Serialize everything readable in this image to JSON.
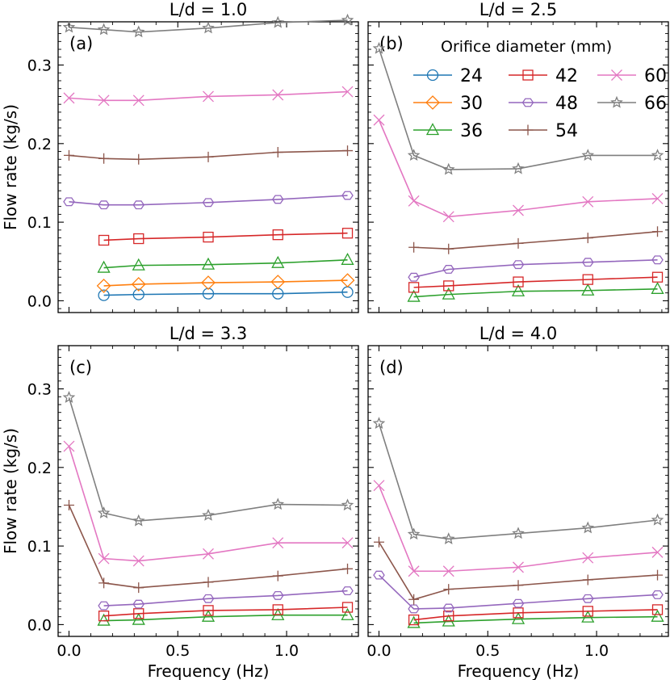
{
  "chart_data": [
    {
      "type": "line",
      "panel_label": "(a)",
      "title": "L/d = 1.0",
      "xlabel": "",
      "ylabel": "Flow rate (kg/s)",
      "xlim": [
        -0.05,
        1.33
      ],
      "ylim": [
        -0.015,
        0.355
      ],
      "series": [
        {
          "name": "24",
          "x": [
            0.16,
            0.32,
            0.64,
            0.96,
            1.28
          ],
          "y": [
            0.007,
            0.008,
            0.009,
            0.009,
            0.011
          ]
        },
        {
          "name": "30",
          "x": [
            0.16,
            0.32,
            0.64,
            0.96,
            1.28
          ],
          "y": [
            0.019,
            0.021,
            0.023,
            0.024,
            0.026
          ]
        },
        {
          "name": "36",
          "x": [
            0.16,
            0.32,
            0.64,
            0.96,
            1.28
          ],
          "y": [
            0.042,
            0.045,
            0.046,
            0.048,
            0.052
          ]
        },
        {
          "name": "42",
          "x": [
            0.16,
            0.32,
            0.64,
            0.96,
            1.28
          ],
          "y": [
            0.077,
            0.079,
            0.081,
            0.084,
            0.086
          ]
        },
        {
          "name": "48",
          "x": [
            0.0,
            0.16,
            0.32,
            0.64,
            0.96,
            1.28
          ],
          "y": [
            0.126,
            0.122,
            0.122,
            0.125,
            0.129,
            0.134
          ]
        },
        {
          "name": "54",
          "x": [
            0.0,
            0.16,
            0.32,
            0.64,
            0.96,
            1.28
          ],
          "y": [
            0.185,
            0.181,
            0.18,
            0.183,
            0.189,
            0.191
          ]
        },
        {
          "name": "60",
          "x": [
            0.0,
            0.16,
            0.32,
            0.64,
            0.96,
            1.28
          ],
          "y": [
            0.258,
            0.255,
            0.255,
            0.26,
            0.262,
            0.266
          ]
        },
        {
          "name": "66",
          "x": [
            0.0,
            0.16,
            0.32,
            0.64,
            0.96,
            1.28
          ],
          "y": [
            0.348,
            0.345,
            0.342,
            0.347,
            0.354,
            0.357
          ]
        }
      ]
    },
    {
      "type": "line",
      "panel_label": "(b)",
      "title": "L/d = 2.5",
      "xlabel": "",
      "ylabel": "",
      "xlim": [
        -0.05,
        1.33
      ],
      "ylim": [
        -0.015,
        0.355
      ],
      "series": [
        {
          "name": "36",
          "x": [
            0.16,
            0.32,
            0.64,
            0.96,
            1.28
          ],
          "y": [
            0.005,
            0.008,
            0.012,
            0.013,
            0.015
          ]
        },
        {
          "name": "42",
          "x": [
            0.16,
            0.32,
            0.64,
            0.96,
            1.28
          ],
          "y": [
            0.017,
            0.019,
            0.024,
            0.027,
            0.03
          ]
        },
        {
          "name": "48",
          "x": [
            0.16,
            0.32,
            0.64,
            0.96,
            1.28
          ],
          "y": [
            0.03,
            0.04,
            0.046,
            0.049,
            0.052
          ]
        },
        {
          "name": "54",
          "x": [
            0.16,
            0.32,
            0.64,
            0.96,
            1.28
          ],
          "y": [
            0.068,
            0.066,
            0.073,
            0.08,
            0.088
          ]
        },
        {
          "name": "60",
          "x": [
            0.0,
            0.16,
            0.32,
            0.64,
            0.96,
            1.28
          ],
          "y": [
            0.23,
            0.127,
            0.107,
            0.115,
            0.126,
            0.13
          ]
        },
        {
          "name": "66",
          "x": [
            0.0,
            0.16,
            0.32,
            0.64,
            0.96,
            1.28
          ],
          "y": [
            0.321,
            0.185,
            0.167,
            0.168,
            0.185,
            0.185
          ]
        }
      ],
      "legend": {
        "title": "Orifice diameter (mm)",
        "position": "top-right",
        "entries": [
          "24",
          "30",
          "36",
          "42",
          "48",
          "54",
          "60",
          "66"
        ]
      }
    },
    {
      "type": "line",
      "panel_label": "(c)",
      "title": "L/d = 3.3",
      "xlabel": "Frequency (Hz)",
      "ylabel": "Flow rate (kg/s)",
      "xlim": [
        -0.05,
        1.33
      ],
      "ylim": [
        -0.015,
        0.355
      ],
      "series": [
        {
          "name": "36",
          "x": [
            0.16,
            0.32,
            0.64,
            0.96,
            1.28
          ],
          "y": [
            0.005,
            0.006,
            0.01,
            0.012,
            0.012
          ]
        },
        {
          "name": "42",
          "x": [
            0.16,
            0.32,
            0.64,
            0.96,
            1.28
          ],
          "y": [
            0.011,
            0.014,
            0.018,
            0.019,
            0.022
          ]
        },
        {
          "name": "48",
          "x": [
            0.16,
            0.32,
            0.64,
            0.96,
            1.28
          ],
          "y": [
            0.024,
            0.026,
            0.033,
            0.037,
            0.043
          ]
        },
        {
          "name": "54",
          "x": [
            0.0,
            0.16,
            0.32,
            0.64,
            0.96,
            1.28
          ],
          "y": [
            0.152,
            0.053,
            0.047,
            0.054,
            0.062,
            0.071
          ]
        },
        {
          "name": "60",
          "x": [
            0.0,
            0.16,
            0.32,
            0.64,
            0.96,
            1.28
          ],
          "y": [
            0.227,
            0.084,
            0.081,
            0.09,
            0.104,
            0.104
          ]
        },
        {
          "name": "66",
          "x": [
            0.0,
            0.16,
            0.32,
            0.64,
            0.96,
            1.28
          ],
          "y": [
            0.289,
            0.142,
            0.132,
            0.139,
            0.153,
            0.152
          ]
        }
      ]
    },
    {
      "type": "line",
      "panel_label": "(d)",
      "title": "L/d = 4.0",
      "xlabel": "Frequency (Hz)",
      "ylabel": "",
      "xlim": [
        -0.05,
        1.33
      ],
      "ylim": [
        -0.015,
        0.355
      ],
      "series": [
        {
          "name": "36",
          "x": [
            0.16,
            0.32,
            0.64,
            0.96,
            1.28
          ],
          "y": [
            0.002,
            0.004,
            0.007,
            0.009,
            0.01
          ]
        },
        {
          "name": "42",
          "x": [
            0.16,
            0.32,
            0.64,
            0.96,
            1.28
          ],
          "y": [
            0.006,
            0.011,
            0.015,
            0.017,
            0.019
          ]
        },
        {
          "name": "48",
          "x": [
            0.0,
            0.16,
            0.32,
            0.64,
            0.96,
            1.28
          ],
          "y": [
            0.063,
            0.02,
            0.021,
            0.027,
            0.033,
            0.038
          ]
        },
        {
          "name": "54",
          "x": [
            0.0,
            0.16,
            0.32,
            0.64,
            0.96,
            1.28
          ],
          "y": [
            0.105,
            0.032,
            0.045,
            0.05,
            0.057,
            0.063
          ]
        },
        {
          "name": "60",
          "x": [
            0.0,
            0.16,
            0.32,
            0.64,
            0.96,
            1.28
          ],
          "y": [
            0.177,
            0.068,
            0.068,
            0.073,
            0.085,
            0.092
          ]
        },
        {
          "name": "66",
          "x": [
            0.0,
            0.16,
            0.32,
            0.64,
            0.96,
            1.28
          ],
          "y": [
            0.256,
            0.115,
            0.109,
            0.116,
            0.123,
            0.133
          ]
        }
      ]
    }
  ],
  "x_ticks": [
    "0.0",
    "0.5",
    "1.0"
  ],
  "y_ticks": [
    "0.0",
    "0.1",
    "0.2",
    "0.3"
  ],
  "series_style": {
    "24": {
      "color": "#1f77b4",
      "marker": "circle"
    },
    "30": {
      "color": "#ff7f0e",
      "marker": "diamond"
    },
    "36": {
      "color": "#2ca02c",
      "marker": "triangle"
    },
    "42": {
      "color": "#d62728",
      "marker": "square"
    },
    "48": {
      "color": "#9467bd",
      "marker": "hexagon"
    },
    "54": {
      "color": "#8c564b",
      "marker": "plus"
    },
    "60": {
      "color": "#e377c2",
      "marker": "x"
    },
    "66": {
      "color": "#7f7f7f",
      "marker": "star"
    }
  }
}
